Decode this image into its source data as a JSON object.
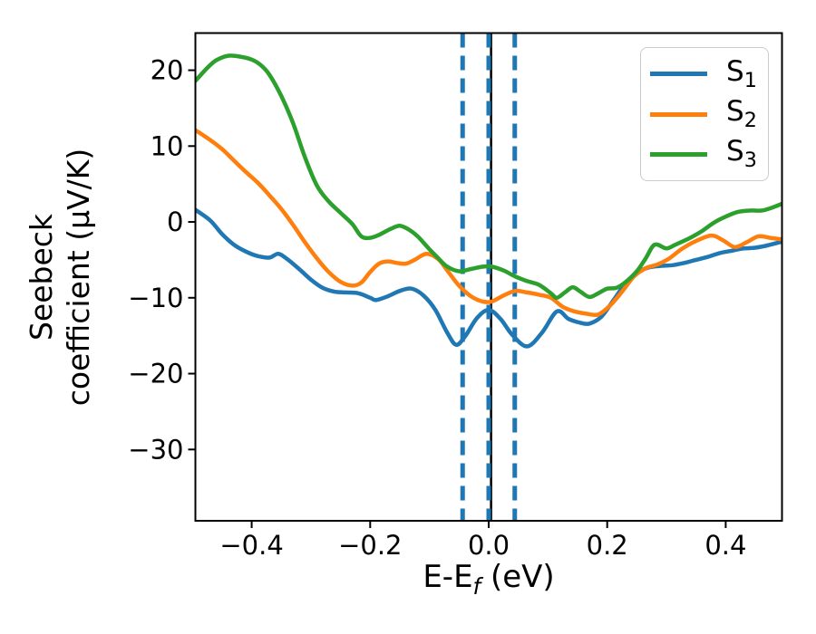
{
  "figure": {
    "background": "#ffffff",
    "accent_blue": "#1f77b4",
    "accent_orange": "#ff7f0e",
    "accent_green": "#2ca02c"
  },
  "chart_data": {
    "type": "line",
    "title": "",
    "xlabel": {
      "prefix": "E-E",
      "sub": "f",
      "suffix": " (eV)"
    },
    "ylabel": [
      "Seebeck",
      "coefficient (μV/K)"
    ],
    "xlim": [
      -0.495,
      0.495
    ],
    "ylim": [
      -39.4,
      24.9
    ],
    "grid": false,
    "x_ticks": {
      "values": [
        -0.4,
        -0.2,
        0.0,
        0.2,
        0.4
      ],
      "labels": [
        "−0.4",
        "−0.2",
        "0.0",
        "0.2",
        "0.4"
      ]
    },
    "y_ticks": {
      "values": [
        20,
        10,
        0,
        -10,
        -20,
        -30
      ],
      "labels": [
        "20",
        "10",
        "0",
        "−10",
        "−20",
        "−30"
      ]
    },
    "legend": {
      "position": "upper right",
      "entries": [
        {
          "main": "S",
          "sub": "1",
          "color": "#1f77b4"
        },
        {
          "main": "S",
          "sub": "2",
          "color": "#ff7f0e"
        },
        {
          "main": "S",
          "sub": "3",
          "color": "#2ca02c"
        }
      ]
    },
    "vlines": [
      {
        "x": 0.004,
        "color": "#000000",
        "style": "solid",
        "width": 2.5
      },
      {
        "x": -0.044,
        "color": "#1f77b4",
        "style": "dashed",
        "width": 5
      },
      {
        "x": 0.0,
        "color": "#1f77b4",
        "style": "dashed",
        "width": 5
      },
      {
        "x": 0.044,
        "color": "#1f77b4",
        "style": "dashed",
        "width": 5
      }
    ],
    "series": [
      {
        "name": "S1",
        "color": "#1f77b4",
        "width": 4.5,
        "points": [
          [
            -0.495,
            1.6
          ],
          [
            -0.47,
            0.2
          ],
          [
            -0.45,
            -1.6
          ],
          [
            -0.43,
            -3.0
          ],
          [
            -0.41,
            -3.9
          ],
          [
            -0.39,
            -4.5
          ],
          [
            -0.37,
            -4.7
          ],
          [
            -0.355,
            -4.2
          ],
          [
            -0.34,
            -4.9
          ],
          [
            -0.32,
            -6.2
          ],
          [
            -0.3,
            -7.6
          ],
          [
            -0.28,
            -8.7
          ],
          [
            -0.26,
            -9.2
          ],
          [
            -0.24,
            -9.3
          ],
          [
            -0.22,
            -9.4
          ],
          [
            -0.2,
            -10.0
          ],
          [
            -0.19,
            -10.3
          ],
          [
            -0.17,
            -9.8
          ],
          [
            -0.15,
            -9.1
          ],
          [
            -0.13,
            -8.8
          ],
          [
            -0.11,
            -9.7
          ],
          [
            -0.09,
            -11.6
          ],
          [
            -0.07,
            -14.6
          ],
          [
            -0.055,
            -16.2
          ],
          [
            -0.04,
            -15.1
          ],
          [
            -0.02,
            -12.7
          ],
          [
            0.0,
            -11.6
          ],
          [
            0.02,
            -12.8
          ],
          [
            0.04,
            -14.9
          ],
          [
            0.065,
            -16.4
          ],
          [
            0.09,
            -14.6
          ],
          [
            0.115,
            -11.8
          ],
          [
            0.135,
            -12.8
          ],
          [
            0.155,
            -13.3
          ],
          [
            0.17,
            -13.4
          ],
          [
            0.19,
            -12.5
          ],
          [
            0.21,
            -10.4
          ],
          [
            0.23,
            -8.2
          ],
          [
            0.25,
            -6.7
          ],
          [
            0.27,
            -6.0
          ],
          [
            0.29,
            -5.8
          ],
          [
            0.31,
            -5.7
          ],
          [
            0.33,
            -5.4
          ],
          [
            0.35,
            -5.0
          ],
          [
            0.37,
            -4.6
          ],
          [
            0.39,
            -4.1
          ],
          [
            0.41,
            -3.8
          ],
          [
            0.43,
            -3.5
          ],
          [
            0.45,
            -3.4
          ],
          [
            0.47,
            -3.1
          ],
          [
            0.495,
            -2.6
          ]
        ]
      },
      {
        "name": "S2",
        "color": "#ff7f0e",
        "width": 4.5,
        "points": [
          [
            -0.495,
            12.1
          ],
          [
            -0.47,
            10.8
          ],
          [
            -0.45,
            9.6
          ],
          [
            -0.43,
            8.1
          ],
          [
            -0.41,
            6.6
          ],
          [
            -0.39,
            5.2
          ],
          [
            -0.37,
            3.5
          ],
          [
            -0.35,
            1.7
          ],
          [
            -0.33,
            -0.4
          ],
          [
            -0.31,
            -2.7
          ],
          [
            -0.29,
            -4.8
          ],
          [
            -0.27,
            -6.6
          ],
          [
            -0.25,
            -7.9
          ],
          [
            -0.23,
            -8.4
          ],
          [
            -0.215,
            -8.0
          ],
          [
            -0.2,
            -6.6
          ],
          [
            -0.185,
            -5.5
          ],
          [
            -0.17,
            -5.2
          ],
          [
            -0.155,
            -5.4
          ],
          [
            -0.14,
            -5.5
          ],
          [
            -0.125,
            -5.0
          ],
          [
            -0.105,
            -4.2
          ],
          [
            -0.085,
            -4.9
          ],
          [
            -0.07,
            -6.4
          ],
          [
            -0.05,
            -8.4
          ],
          [
            -0.03,
            -9.8
          ],
          [
            -0.01,
            -10.5
          ],
          [
            0.005,
            -10.5
          ],
          [
            0.025,
            -9.7
          ],
          [
            0.045,
            -9.1
          ],
          [
            0.065,
            -9.3
          ],
          [
            0.085,
            -9.6
          ],
          [
            0.105,
            -10.0
          ],
          [
            0.125,
            -11.2
          ],
          [
            0.145,
            -11.8
          ],
          [
            0.165,
            -12.1
          ],
          [
            0.185,
            -12.2
          ],
          [
            0.205,
            -11.0
          ],
          [
            0.225,
            -9.2
          ],
          [
            0.245,
            -7.2
          ],
          [
            0.265,
            -6.1
          ],
          [
            0.285,
            -5.6
          ],
          [
            0.305,
            -4.8
          ],
          [
            0.325,
            -3.6
          ],
          [
            0.345,
            -2.7
          ],
          [
            0.375,
            -1.8
          ],
          [
            0.395,
            -2.4
          ],
          [
            0.415,
            -3.3
          ],
          [
            0.435,
            -2.7
          ],
          [
            0.455,
            -1.9
          ],
          [
            0.475,
            -2.1
          ],
          [
            0.495,
            -2.3
          ]
        ]
      },
      {
        "name": "S3",
        "color": "#2ca02c",
        "width": 4.5,
        "points": [
          [
            -0.495,
            18.6
          ],
          [
            -0.475,
            20.3
          ],
          [
            -0.46,
            21.3
          ],
          [
            -0.44,
            21.9
          ],
          [
            -0.42,
            21.8
          ],
          [
            -0.4,
            21.4
          ],
          [
            -0.385,
            20.7
          ],
          [
            -0.37,
            19.4
          ],
          [
            -0.35,
            16.6
          ],
          [
            -0.33,
            13.0
          ],
          [
            -0.31,
            8.5
          ],
          [
            -0.29,
            4.8
          ],
          [
            -0.27,
            2.7
          ],
          [
            -0.25,
            1.2
          ],
          [
            -0.23,
            -0.3
          ],
          [
            -0.215,
            -1.9
          ],
          [
            -0.2,
            -2.1
          ],
          [
            -0.185,
            -1.7
          ],
          [
            -0.165,
            -0.9
          ],
          [
            -0.15,
            -0.5
          ],
          [
            -0.135,
            -1.0
          ],
          [
            -0.12,
            -1.9
          ],
          [
            -0.1,
            -3.6
          ],
          [
            -0.085,
            -4.8
          ],
          [
            -0.07,
            -5.9
          ],
          [
            -0.05,
            -6.5
          ],
          [
            -0.03,
            -6.2
          ],
          [
            -0.01,
            -5.9
          ],
          [
            0.005,
            -5.9
          ],
          [
            0.025,
            -6.4
          ],
          [
            0.045,
            -7.2
          ],
          [
            0.065,
            -7.8
          ],
          [
            0.085,
            -8.3
          ],
          [
            0.105,
            -9.4
          ],
          [
            0.115,
            -10.0
          ],
          [
            0.13,
            -9.2
          ],
          [
            0.142,
            -8.6
          ],
          [
            0.155,
            -9.2
          ],
          [
            0.17,
            -9.9
          ],
          [
            0.185,
            -9.4
          ],
          [
            0.2,
            -8.8
          ],
          [
            0.215,
            -8.7
          ],
          [
            0.23,
            -8.0
          ],
          [
            0.25,
            -6.5
          ],
          [
            0.265,
            -4.8
          ],
          [
            0.28,
            -3.0
          ],
          [
            0.3,
            -3.5
          ],
          [
            0.315,
            -3.0
          ],
          [
            0.34,
            -2.1
          ],
          [
            0.36,
            -1.2
          ],
          [
            0.38,
            -0.1
          ],
          [
            0.4,
            0.7
          ],
          [
            0.42,
            1.3
          ],
          [
            0.44,
            1.5
          ],
          [
            0.46,
            1.5
          ],
          [
            0.475,
            1.8
          ],
          [
            0.495,
            2.4
          ]
        ]
      }
    ]
  }
}
